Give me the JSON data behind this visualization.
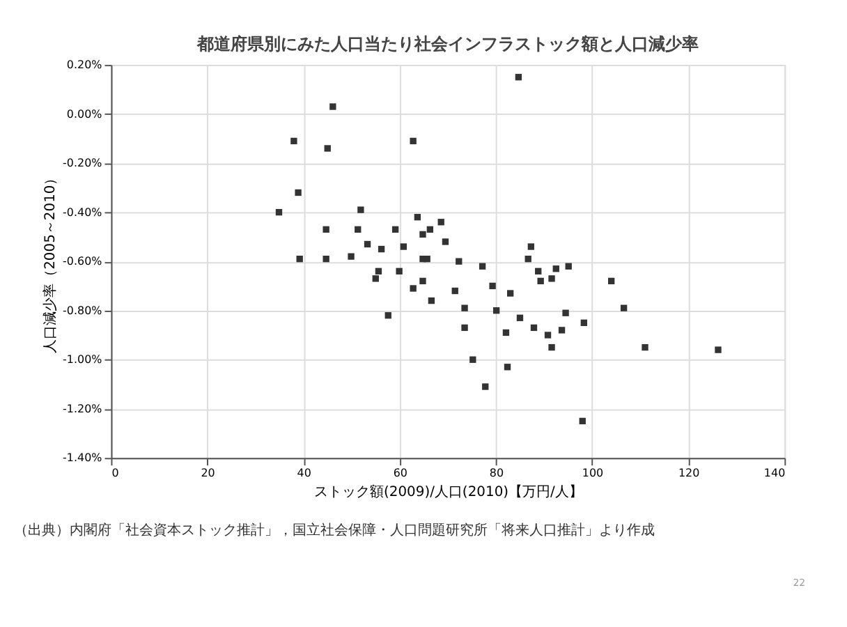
{
  "chart_data": {
    "type": "scatter",
    "title": "都道府県別にみた人口当たり社会インフラストック額と人口減少率",
    "xlabel": "ストック額(2009)/人口(2010)【万円/人】",
    "ylabel": "人口減少率（2005～2010）",
    "annotations": [
      "（出典）内閣府「社会資本ストック推計」，国立社会保障・人口問題研究所「将来人口推計」より作成",
      "22"
    ],
    "series": [
      {
        "color": "#333333",
        "x": [
          84.7,
          46.1,
          38.0,
          45.0,
          62.8,
          38.9,
          34.9,
          51.9,
          44.7,
          51.3,
          59.1,
          66.3,
          39.2,
          44.7,
          49.9,
          53.3,
          56.2,
          60.8,
          64.8,
          55.6,
          59.9,
          63.7,
          68.6,
          64.8,
          69.5,
          65.7,
          72.3,
          77.2,
          86.7,
          87.3,
          88.8,
          91.6,
          92.5,
          95.1,
          104.0,
          106.6,
          98.3,
          93.7,
          111.0,
          126.2,
          82.4,
          77.8,
          98.0,
          75.2,
          64.8,
          71.5,
          79.3,
          83.0,
          89.3,
          73.5,
          80.1,
          85.0,
          87.9,
          90.8,
          91.6,
          73.5,
          82.1,
          94.5,
          57.6,
          66.6,
          55.0,
          62.8
        ],
        "values": [
          0.15,
          0.03,
          -0.11,
          -0.14,
          -0.11,
          -0.32,
          -0.4,
          -0.39,
          -0.47,
          -0.47,
          -0.47,
          -0.47,
          -0.59,
          -0.59,
          -0.58,
          -0.53,
          -0.55,
          -0.54,
          -0.59,
          -0.64,
          -0.64,
          -0.42,
          -0.44,
          -0.49,
          -0.52,
          -0.59,
          -0.6,
          -0.62,
          -0.59,
          -0.54,
          -0.64,
          -0.67,
          -0.63,
          -0.62,
          -0.68,
          -0.79,
          -0.85,
          -0.88,
          -0.95,
          -0.96,
          -1.03,
          -1.11,
          -1.25,
          -1.0,
          -0.68,
          -0.72,
          -0.7,
          -0.73,
          -0.68,
          -0.79,
          -0.8,
          -0.83,
          -0.87,
          -0.9,
          -0.95,
          -0.87,
          -0.89,
          -0.81,
          -0.82,
          -0.76,
          -0.67,
          -0.71
        ]
      }
    ],
    "xlim": [
      0,
      140
    ],
    "xticks": [
      0,
      20,
      40,
      60,
      80,
      100,
      120,
      140
    ],
    "ylim": [
      -1.4,
      0.2
    ],
    "yticks": [
      {
        "value": 0.2,
        "label": "0.20%"
      },
      {
        "value": 0.0,
        "label": "0.00%"
      },
      {
        "value": -0.2,
        "label": "-0.20%"
      },
      {
        "value": -0.4,
        "label": "-0.40%"
      },
      {
        "value": -0.6,
        "label": "-0.60%"
      },
      {
        "value": -0.8,
        "label": "-0.80%"
      },
      {
        "value": -1.0,
        "label": "-1.00%"
      },
      {
        "value": -1.2,
        "label": "-1.20%"
      },
      {
        "value": -1.4,
        "label": "-1.40%"
      }
    ],
    "grid": true,
    "marker": "square"
  }
}
